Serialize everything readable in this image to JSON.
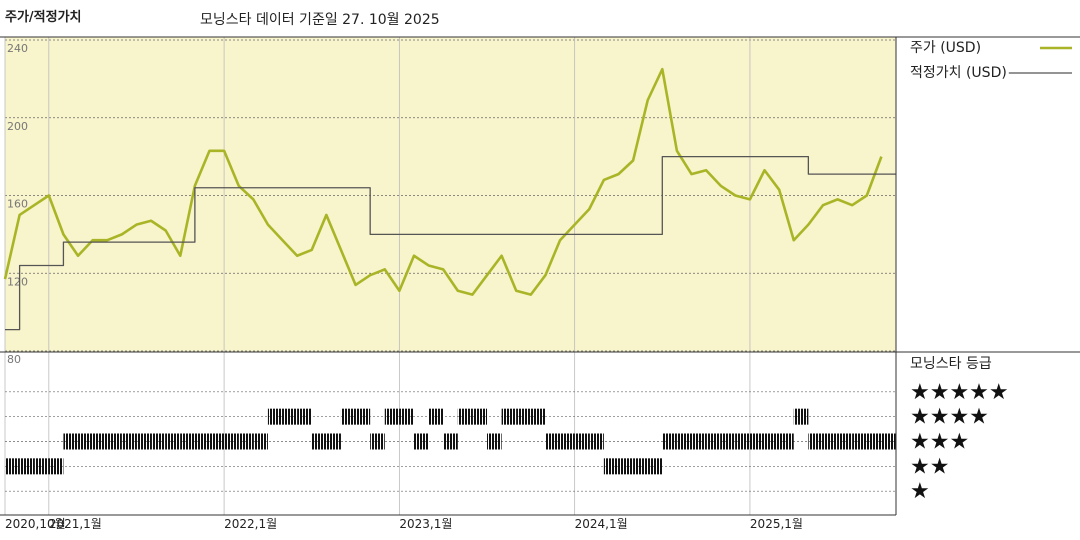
{
  "chart_data": {
    "type": "line",
    "title": "주가/적정가치",
    "subtitle": "모닝스타 데이터 기준일 27. 10월 2025",
    "background": "#f8f4cc",
    "grid": true,
    "x": [
      "2020-10",
      "2020-11",
      "2020-12",
      "2021-01",
      "2021-02",
      "2021-03",
      "2021-04",
      "2021-05",
      "2021-06",
      "2021-07",
      "2021-08",
      "2021-09",
      "2021-10",
      "2021-11",
      "2021-12",
      "2022-01",
      "2022-02",
      "2022-03",
      "2022-04",
      "2022-05",
      "2022-06",
      "2022-07",
      "2022-08",
      "2022-09",
      "2022-10",
      "2022-11",
      "2022-12",
      "2023-01",
      "2023-02",
      "2023-03",
      "2023-04",
      "2023-05",
      "2023-06",
      "2023-07",
      "2023-08",
      "2023-09",
      "2023-10",
      "2023-11",
      "2023-12",
      "2024-01",
      "2024-02",
      "2024-03",
      "2024-04",
      "2024-05",
      "2024-06",
      "2024-07",
      "2024-08",
      "2024-09",
      "2024-10",
      "2024-11",
      "2024-12",
      "2025-01",
      "2025-02",
      "2025-03",
      "2025-04",
      "2025-05",
      "2025-06",
      "2025-07",
      "2025-08",
      "2025-09",
      "2025-10"
    ],
    "xlim": [
      "2020-10",
      "2025-11"
    ],
    "xticks": [
      {
        "value": "2020-10",
        "label": "2020,10월"
      },
      {
        "value": "2021-01",
        "label": "2021,1월"
      },
      {
        "value": "2022-01",
        "label": "2022,1월"
      },
      {
        "value": "2023-01",
        "label": "2023,1월"
      },
      {
        "value": "2024-01",
        "label": "2024,1월"
      },
      {
        "value": "2025-01",
        "label": "2025,1월"
      }
    ],
    "ylim": [
      80,
      240
    ],
    "yticks": [
      80,
      120,
      160,
      200,
      240
    ],
    "y2lim": [
      0,
      6
    ],
    "y2ticks": [
      {
        "value": 5,
        "label": "★★★★★"
      },
      {
        "value": 4,
        "label": "★★★★"
      },
      {
        "value": 3,
        "label": "★★★"
      },
      {
        "value": 2,
        "label": "★★"
      },
      {
        "value": 1,
        "label": "★"
      }
    ],
    "series": [
      {
        "name": "주가 (USD)",
        "color": "#a9b526",
        "values": [
          117,
          150,
          155,
          160,
          140,
          129,
          137,
          137,
          140,
          145,
          147,
          142,
          129,
          165,
          183,
          183,
          165,
          158,
          145,
          137,
          129,
          132,
          150,
          132,
          114,
          119,
          122,
          111,
          129,
          124,
          122,
          111,
          109,
          119,
          129,
          111,
          109,
          119,
          137,
          145,
          153,
          168,
          171,
          178,
          209,
          225,
          183,
          171,
          173,
          165,
          160,
          158,
          173,
          163,
          137,
          145,
          155,
          158,
          155,
          160,
          180
        ]
      },
      {
        "name": "적정가치 (USD)",
        "color": "#555555",
        "step": true,
        "values": [
          91,
          124,
          124,
          124,
          136,
          136,
          136,
          136,
          136,
          136,
          136,
          136,
          136,
          164,
          164,
          164,
          164,
          164,
          164,
          164,
          164,
          164,
          164,
          164,
          164,
          140,
          140,
          140,
          140,
          140,
          140,
          140,
          140,
          140,
          140,
          140,
          140,
          140,
          140,
          140,
          140,
          140,
          140,
          140,
          140,
          180,
          180,
          180,
          180,
          180,
          180,
          180,
          180,
          180,
          180,
          171,
          171,
          171,
          171,
          171,
          171
        ]
      },
      {
        "name": "모닝스타 등급",
        "color": "#111111",
        "axis": "y2",
        "style": "rating",
        "values": [
          2,
          2,
          2,
          2,
          3,
          3,
          3,
          3,
          3,
          3,
          3,
          3,
          3,
          3,
          3,
          3,
          3,
          3,
          4,
          4,
          4,
          3,
          3,
          4,
          4,
          3,
          4,
          4,
          3,
          4,
          3,
          4,
          4,
          3,
          4,
          4,
          4,
          3,
          3,
          3,
          3,
          2,
          2,
          2,
          2,
          3,
          3,
          3,
          3,
          3,
          3,
          3,
          3,
          3,
          4,
          3,
          3,
          3,
          3,
          3,
          3
        ]
      }
    ]
  }
}
